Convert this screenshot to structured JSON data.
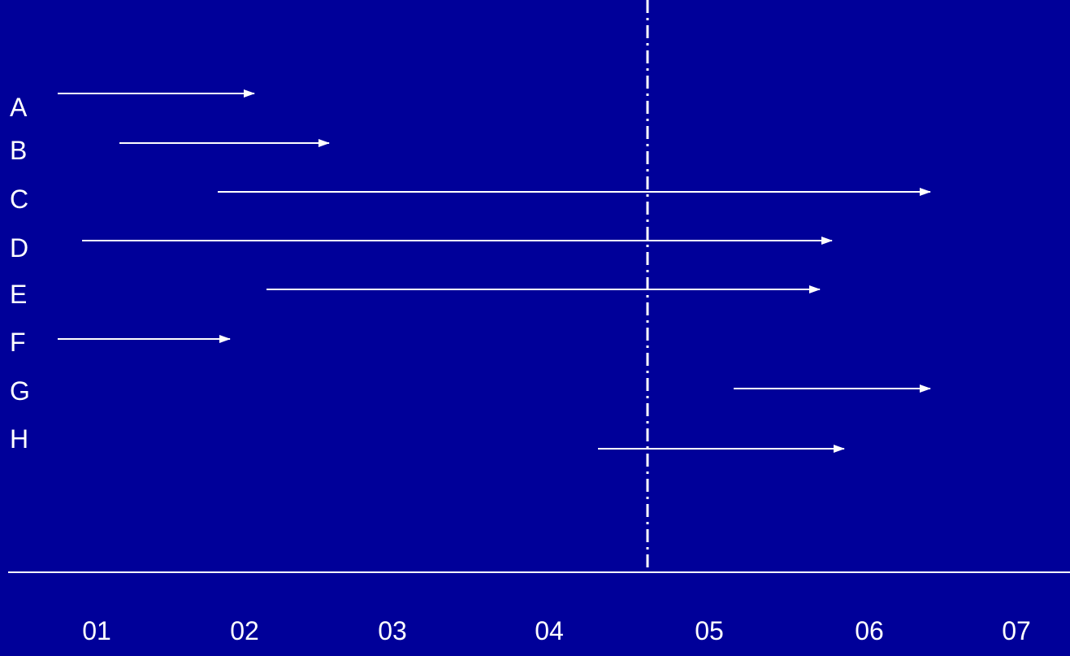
{
  "diagram": {
    "colors": {
      "background": "#000099",
      "foreground": "#ffffff"
    },
    "marker_line_style": "dash-dot",
    "axis": {
      "ticks": [
        "01",
        "02",
        "03",
        "04",
        "05",
        "06",
        "07"
      ]
    },
    "rows": [
      {
        "label": "A"
      },
      {
        "label": "B"
      },
      {
        "label": "C"
      },
      {
        "label": "D"
      },
      {
        "label": "E"
      },
      {
        "label": "F"
      },
      {
        "label": "G"
      },
      {
        "label": "H"
      }
    ]
  }
}
